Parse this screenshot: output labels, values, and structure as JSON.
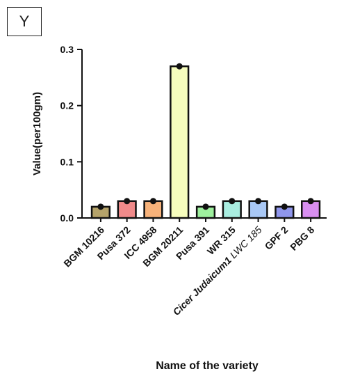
{
  "panel_label": "Y",
  "chart_data": {
    "type": "bar",
    "categories": [
      "BGM 10216",
      "Pusa 372",
      "ICC 4958",
      "BGM 20211",
      "Pusa 391",
      "WR 315",
      "Cicer Judaicum1 LWC 185",
      "GPF 2",
      "PBG 8"
    ],
    "category_labels": [
      {
        "main": "BGM 10216",
        "italic": ""
      },
      {
        "main": "Pusa 372",
        "italic": ""
      },
      {
        "main": "ICC 4958",
        "italic": ""
      },
      {
        "main": "BGM 20211",
        "italic": ""
      },
      {
        "main": "Pusa 391",
        "italic": ""
      },
      {
        "main": "WR 315",
        "italic": ""
      },
      {
        "main": "Cicer Judaicum1 ",
        "italic": "LWC 185"
      },
      {
        "main": "GPF 2",
        "italic": ""
      },
      {
        "main": "PBG 8",
        "italic": ""
      }
    ],
    "values": [
      0.02,
      0.03,
      0.03,
      0.27,
      0.02,
      0.03,
      0.03,
      0.02,
      0.03
    ],
    "colors": [
      "#b5a36a",
      "#f08a8a",
      "#f7b27a",
      "#f6fdbd",
      "#9ef09e",
      "#a9ede0",
      "#a9c8f5",
      "#8f96ec",
      "#d88ef0"
    ],
    "xlabel": "Name of the variety",
    "ylabel": "Value(per100gm)",
    "ylim": [
      0,
      0.3
    ],
    "yticks": [
      "0.0",
      "0.1",
      "0.2",
      "0.3"
    ],
    "ytick_values": [
      0,
      0.1,
      0.2,
      0.3
    ],
    "grid": false,
    "legend": "none"
  }
}
